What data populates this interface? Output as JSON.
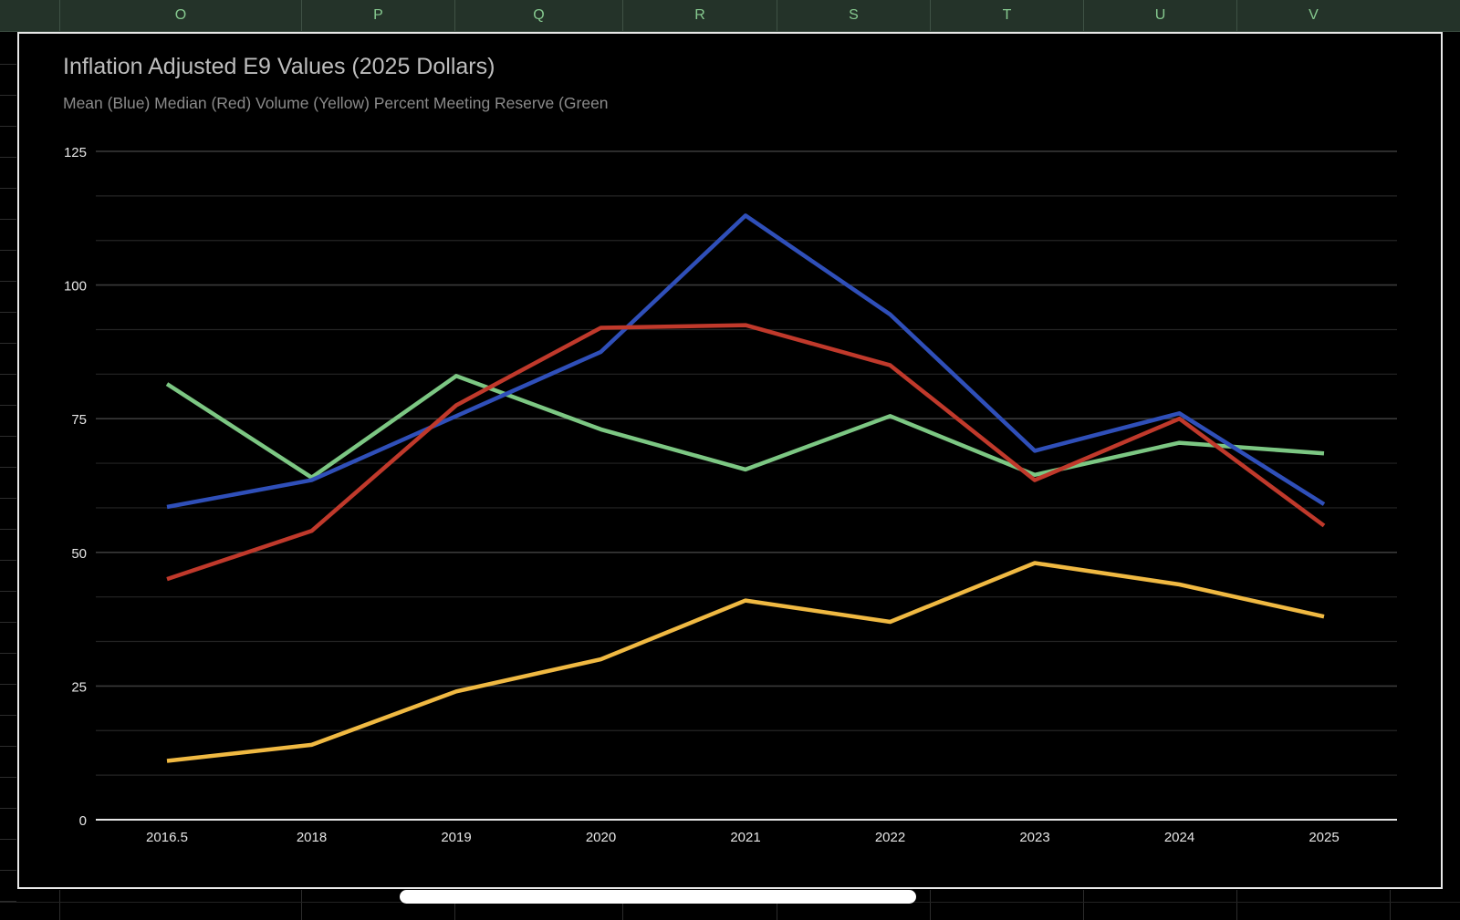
{
  "sheet": {
    "columns": [
      "O",
      "P",
      "Q",
      "R",
      "S",
      "T",
      "U",
      "V"
    ]
  },
  "colors": {
    "background": "#000000",
    "column_header": "#243329",
    "column_label": "#86c98f",
    "mean": "#2f4fb9",
    "median": "#c0392b",
    "volume": "#f0b942",
    "percent_reserve": "#7cc783",
    "gridline": "#2a2a2a",
    "axis_text": "#e6e6e6"
  },
  "chart_data": {
    "type": "line",
    "title": "Inflation Adjusted E9 Values (2025 Dollars)",
    "subtitle": "Mean (Blue) Median (Red) Volume (Yellow) Percent Meeting Reserve (Green",
    "xlabel": "",
    "ylabel": "",
    "categories": [
      "2016.5",
      "2018",
      "2019",
      "2020",
      "2021",
      "2022",
      "2023",
      "2024",
      "2025"
    ],
    "y_ticks": [
      0,
      25,
      50,
      75,
      100,
      125
    ],
    "ylim": [
      0,
      125
    ],
    "grid": true,
    "legend": "none",
    "series": [
      {
        "color": "#2f4fb9",
        "values": [
          58.5,
          63.5,
          75.5,
          87.5,
          113,
          94.5,
          69,
          76,
          59
        ]
      },
      {
        "color": "#c0392b",
        "values": [
          45,
          54,
          77.5,
          92,
          92.5,
          85,
          63.5,
          75,
          55
        ]
      },
      {
        "color": "#f0b942",
        "values": [
          11,
          14,
          24,
          30,
          41,
          37,
          48,
          44,
          38
        ]
      },
      {
        "color": "#7cc783",
        "values": [
          81.5,
          64,
          83,
          73,
          65.5,
          75.5,
          64.5,
          70.5,
          68.5
        ]
      }
    ]
  }
}
